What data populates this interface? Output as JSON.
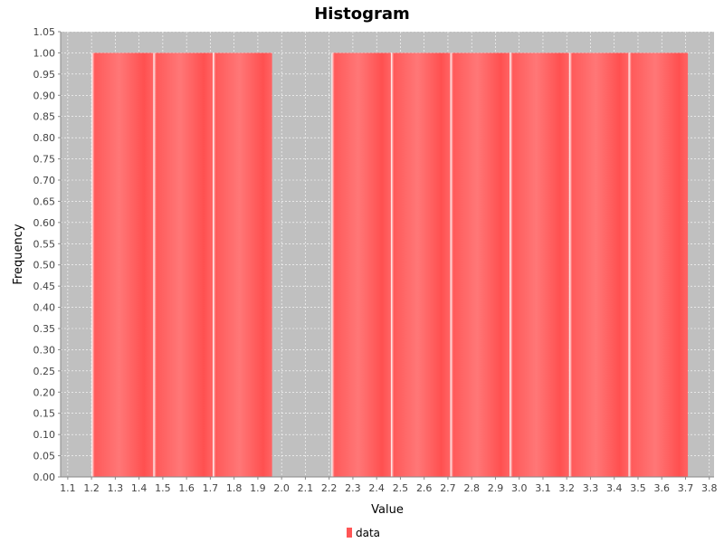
{
  "chart_data": {
    "type": "bar",
    "title": "Histogram",
    "xlabel": "Value",
    "ylabel": "Frequency",
    "xlim": [
      1.07,
      3.82
    ],
    "ylim": [
      0.0,
      1.05
    ],
    "xticks": [
      "1.1",
      "1.2",
      "1.3",
      "1.4",
      "1.5",
      "1.6",
      "1.7",
      "1.8",
      "1.9",
      "2.0",
      "2.1",
      "2.2",
      "2.3",
      "2.4",
      "2.5",
      "2.6",
      "2.7",
      "2.8",
      "2.9",
      "3.0",
      "3.1",
      "3.2",
      "3.3",
      "3.4",
      "3.5",
      "3.6",
      "3.7",
      "3.8"
    ],
    "yticks": [
      "0.00",
      "0.05",
      "0.10",
      "0.15",
      "0.20",
      "0.25",
      "0.30",
      "0.35",
      "0.40",
      "0.45",
      "0.50",
      "0.55",
      "0.60",
      "0.65",
      "0.70",
      "0.75",
      "0.80",
      "0.85",
      "0.90",
      "0.95",
      "1.00",
      "1.05"
    ],
    "grid": true,
    "legend_position": "bottom-center",
    "series": [
      {
        "name": "data",
        "color": "#ff5555",
        "bins": [
          {
            "x0": 1.2,
            "x1": 1.46,
            "value": 1.0
          },
          {
            "x0": 1.46,
            "x1": 1.71,
            "value": 1.0
          },
          {
            "x0": 1.71,
            "x1": 1.96,
            "value": 1.0
          },
          {
            "x0": 2.21,
            "x1": 2.46,
            "value": 1.0
          },
          {
            "x0": 2.46,
            "x1": 2.71,
            "value": 1.0
          },
          {
            "x0": 2.71,
            "x1": 2.96,
            "value": 1.0
          },
          {
            "x0": 2.96,
            "x1": 3.21,
            "value": 1.0
          },
          {
            "x0": 3.21,
            "x1": 3.46,
            "value": 1.0
          },
          {
            "x0": 3.46,
            "x1": 3.71,
            "value": 1.0
          }
        ]
      }
    ]
  }
}
